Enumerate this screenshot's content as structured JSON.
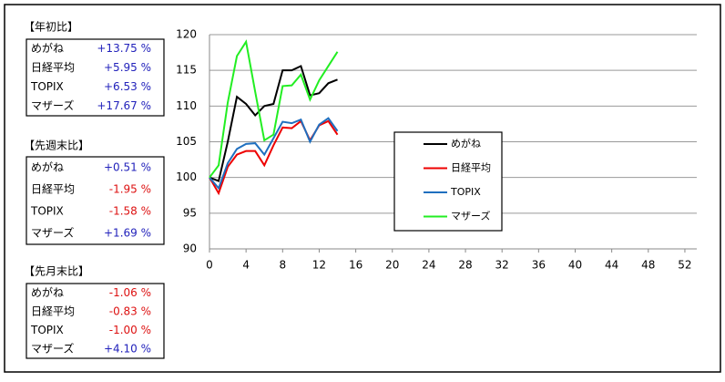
{
  "tables": [
    {
      "title": "【年初比】",
      "rows": [
        [
          "めがね",
          "+13.75 %"
        ],
        [
          "日経平均",
          "+5.95 %"
        ],
        [
          "TOPIX",
          "+6.53 %"
        ],
        [
          "マザーズ",
          "+17.67 %"
        ]
      ]
    },
    {
      "title": "【先週末比】",
      "rows": [
        [
          "めがね",
          "+0.51 %"
        ],
        [
          "日経平均",
          "-1.95 %"
        ],
        [
          "TOPIX",
          "-1.58 %"
        ],
        [
          "マザーズ",
          "+1.69 %"
        ]
      ]
    },
    {
      "title": "【先月末比】",
      "rows": [
        [
          "めがね",
          "-1.06 %"
        ],
        [
          "日経平均",
          "-0.83 %"
        ],
        [
          "TOPIX",
          "-1.00 %"
        ],
        [
          "マザーズ",
          "+4.10 %"
        ]
      ]
    }
  ],
  "positive_color": "#2222bb",
  "negative_color": "#dd1111",
  "chart_data": {
    "type": "line",
    "x": [
      0,
      1,
      2,
      3,
      4,
      5,
      6,
      7,
      8,
      9,
      10,
      11,
      12,
      13,
      14
    ],
    "series": [
      {
        "name": "めがね",
        "color": "#000000",
        "values": [
          100,
          99.5,
          105,
          111.3,
          110.3,
          108.7,
          110,
          110.3,
          115,
          115,
          115.6,
          111.5,
          111.8,
          113.2,
          113.7
        ]
      },
      {
        "name": "日経平均",
        "color": "#ee0000",
        "values": [
          100,
          97.8,
          101.5,
          103.2,
          103.7,
          103.7,
          101.7,
          104.5,
          107,
          106.9,
          107.9,
          105.2,
          107.3,
          107.9,
          106
        ]
      },
      {
        "name": "TOPIX",
        "color": "#1f6fbf",
        "values": [
          100,
          98.5,
          102,
          104,
          104.7,
          104.8,
          103.2,
          105.5,
          107.8,
          107.6,
          108.1,
          105,
          107.4,
          108.3,
          106.5
        ]
      },
      {
        "name": "マザーズ",
        "color": "#22ee22",
        "values": [
          100,
          101.7,
          110.5,
          117,
          119,
          112,
          105.2,
          106,
          112.8,
          112.9,
          114.4,
          110.9,
          113.6,
          115.6,
          117.6
        ]
      }
    ],
    "xlim": [
      0,
      53.3
    ],
    "xticks": [
      0,
      4,
      8,
      12,
      16,
      20,
      24,
      28,
      32,
      36,
      40,
      44,
      48,
      52
    ],
    "ylim": [
      90,
      120
    ],
    "yticks": [
      90,
      95,
      100,
      105,
      110,
      115,
      120
    ],
    "grid": true,
    "legend": "center"
  }
}
